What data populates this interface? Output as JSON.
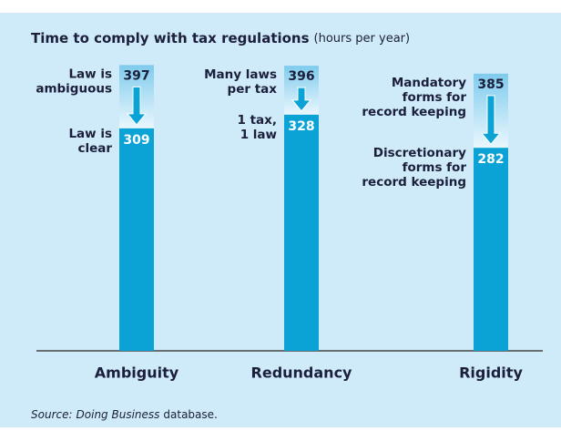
{
  "chart_data": {
    "type": "arrow-bar",
    "title": "Time to comply with tax regulations",
    "subtitle": "(hours per year)",
    "categories": [
      "Ambiguity",
      "Redundancy",
      "Rigidity"
    ],
    "from_values": [
      397,
      396,
      385
    ],
    "to_values": [
      309,
      328,
      282
    ],
    "from_labels": [
      [
        "Law is",
        "ambiguous"
      ],
      [
        "Many laws",
        "per tax"
      ],
      [
        "Mandatory",
        "forms for",
        "record keeping"
      ]
    ],
    "to_labels": [
      [
        "Law is",
        "clear"
      ],
      [
        "1 tax,",
        "1 law"
      ],
      [
        "Discretionary",
        "forms for",
        "record keeping"
      ]
    ],
    "color": "#0ba3d6",
    "ylim": [
      0,
      400
    ],
    "source": [
      "Source:",
      "Doing Business",
      "database."
    ]
  }
}
